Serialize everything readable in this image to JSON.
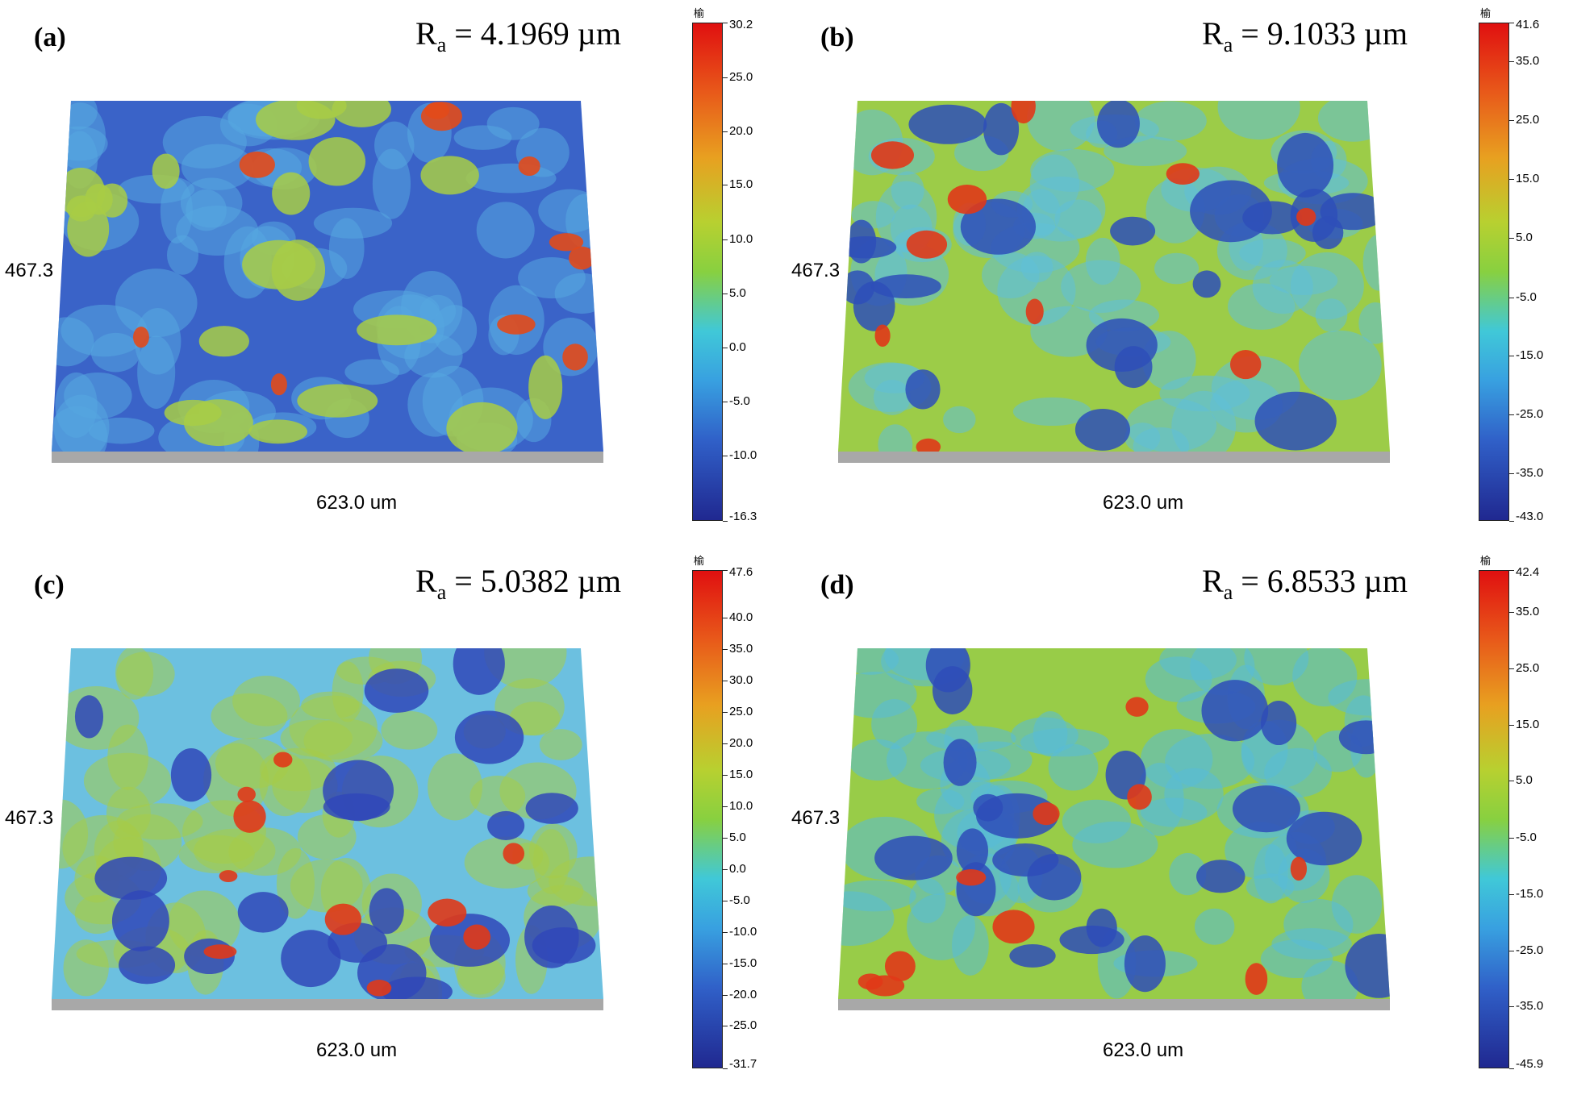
{
  "panels": [
    {
      "label": "(a)",
      "ra_prefix": "R",
      "ra_sub": "a",
      "ra_value": " = 4.1969 µm",
      "ylabel": "467.3",
      "xlabel": "623.0 um",
      "unit": "榆",
      "ticks": [
        "30.2",
        "25.0",
        "20.0",
        "15.0",
        "10.0",
        "5.0",
        "0.0",
        "-5.0",
        "-10.0",
        "-16.3"
      ],
      "tick_fracs": [
        0,
        0.11,
        0.218,
        0.326,
        0.435,
        0.543,
        0.652,
        0.761,
        0.869,
        1.0
      ],
      "palette": {
        "base": "#3a63c8",
        "mid": "#55a8e0",
        "spots": "#a8cc45",
        "peaks": "#e24a1a"
      }
    },
    {
      "label": "(b)",
      "ra_prefix": "R",
      "ra_sub": "a",
      "ra_value": " = 9.1033 µm",
      "ylabel": "467.3",
      "xlabel": "623.0 um",
      "unit": "榆",
      "ticks": [
        "41.6",
        "35.0",
        "25.0",
        "15.0",
        "5.0",
        "-5.0",
        "-15.0",
        "-25.0",
        "-35.0",
        "-43.0"
      ],
      "tick_fracs": [
        0,
        0.078,
        0.196,
        0.314,
        0.432,
        0.551,
        0.669,
        0.787,
        0.905,
        1.0
      ],
      "palette": {
        "base": "#9ccc48",
        "mid": "#60c0d8",
        "spots": "#2e4fb8",
        "peaks": "#e03818"
      }
    },
    {
      "label": "(c)",
      "ra_prefix": "R",
      "ra_sub": "a",
      "ra_value": " = 5.0382 µm",
      "ylabel": "467.3",
      "xlabel": "623.0 um",
      "unit": "榆",
      "ticks": [
        "47.6",
        "40.0",
        "35.0",
        "30.0",
        "25.0",
        "20.0",
        "15.0",
        "10.0",
        "5.0",
        "0.0",
        "-5.0",
        "-10.0",
        "-15.0",
        "-20.0",
        "-25.0",
        "-31.7"
      ],
      "tick_fracs": [
        0,
        0.096,
        0.159,
        0.222,
        0.285,
        0.348,
        0.411,
        0.474,
        0.537,
        0.6,
        0.663,
        0.726,
        0.789,
        0.852,
        0.915,
        1.0
      ],
      "palette": {
        "base": "#6cc0e0",
        "mid": "#a6cc48",
        "spots": "#3048b8",
        "peaks": "#e03818"
      }
    },
    {
      "label": "(d)",
      "ra_prefix": "R",
      "ra_sub": "a",
      "ra_value": " = 6.8533 µm",
      "ylabel": "467.3",
      "xlabel": "623.0 um",
      "unit": "榆",
      "ticks": [
        "42.4",
        "35.0",
        "25.0",
        "15.0",
        "5.0",
        "-5.0",
        "-15.0",
        "-25.0",
        "-35.0",
        "-45.9"
      ],
      "tick_fracs": [
        0,
        0.084,
        0.197,
        0.31,
        0.423,
        0.537,
        0.65,
        0.763,
        0.876,
        1.0
      ],
      "palette": {
        "base": "#98cc48",
        "mid": "#58bcd8",
        "spots": "#2e4cb8",
        "peaks": "#e03818"
      }
    }
  ]
}
